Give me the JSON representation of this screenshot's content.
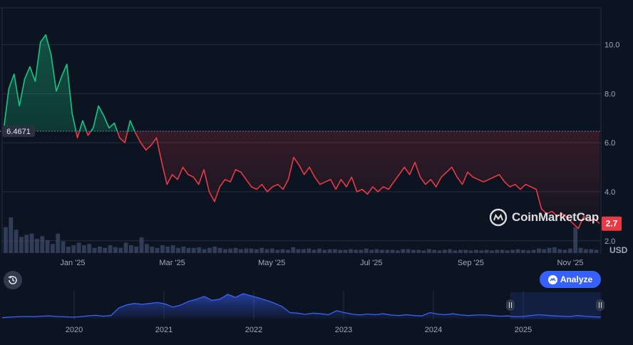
{
  "brand": {
    "name": "CoinMarketCap"
  },
  "controls": {
    "analyze_label": "Analyze"
  },
  "colors": {
    "background": "#0d1421",
    "grid": "#262d3d",
    "up": "#16c784",
    "down": "#ea3943",
    "volume": "#3b4766",
    "navigator_line": "#3861fb",
    "button": "#3861fb",
    "axis_text": "#a1a7bb",
    "reference_label_bg": "#2a3040"
  },
  "chart_data": [
    {
      "type": "line",
      "x_ticks": [
        "Jan '25",
        "Mar '25",
        "May '25",
        "Jul '25",
        "Sep '25",
        "Nov '25"
      ],
      "y_ticks": [
        "2.0",
        "4.0",
        "6.0",
        "8.0",
        "10.0"
      ],
      "ylim": [
        1.5,
        11.5
      ],
      "unit_label": "USD",
      "reference_value": 6.4671,
      "reference_label": "6.4671",
      "last_value": 2.7,
      "last_label": "2.7",
      "grid": "horizontal",
      "series": [
        {
          "values": [
            6.5,
            8.2,
            8.8,
            7.5,
            8.6,
            9.1,
            8.5,
            10.1,
            10.4,
            9.6,
            8.1,
            8.7,
            9.2,
            7.2,
            6.2,
            6.9,
            6.3,
            6.6,
            7.5,
            7.1,
            6.6,
            6.8,
            6.2,
            6.0,
            6.9,
            6.4,
            6.0,
            5.7,
            5.9,
            6.2,
            5.2,
            4.3,
            4.7,
            4.5,
            5.0,
            4.7,
            4.6,
            4.3,
            4.9,
            4.0,
            3.6,
            4.2,
            4.5,
            4.4,
            4.9,
            4.8,
            4.5,
            4.2,
            4.1,
            4.3,
            4.0,
            4.2,
            4.3,
            4.1,
            4.5,
            5.4,
            5.1,
            4.7,
            5.0,
            4.6,
            4.3,
            4.4,
            4.5,
            4.1,
            4.5,
            4.2,
            4.6,
            4.0,
            4.1,
            3.9,
            4.2,
            4.0,
            4.2,
            4.1,
            4.4,
            4.7,
            5.0,
            4.7,
            5.2,
            4.6,
            4.3,
            4.5,
            4.2,
            4.6,
            4.8,
            5.0,
            4.6,
            4.3,
            4.8,
            4.6,
            4.5,
            4.4,
            4.5,
            4.6,
            4.7,
            4.4,
            4.2,
            4.3,
            4.1,
            4.3,
            4.2,
            4.1,
            3.3,
            3.1,
            3.2,
            3.0,
            3.1,
            2.9,
            2.7,
            2.5,
            3.0,
            2.8,
            2.9,
            2.7
          ]
        }
      ],
      "volume": [
        40,
        55,
        36,
        25,
        28,
        30,
        22,
        26,
        20,
        14,
        30,
        18,
        10,
        12,
        16,
        12,
        14,
        8,
        10,
        8,
        12,
        9,
        8,
        16,
        12,
        10,
        24,
        14,
        10,
        8,
        12,
        10,
        12,
        8,
        10,
        8,
        8,
        9,
        6,
        8,
        10,
        8,
        6,
        7,
        8,
        6,
        7,
        7,
        6,
        8,
        6,
        7,
        5,
        6,
        5,
        9,
        6,
        6,
        7,
        5,
        7,
        5,
        6,
        6,
        5,
        5,
        6,
        5,
        5,
        7,
        5,
        6,
        5,
        5,
        5,
        4,
        6,
        6,
        5,
        5,
        4,
        6,
        5,
        4,
        5,
        6,
        4,
        5,
        5,
        4,
        5,
        4,
        5,
        4,
        5,
        5,
        4,
        5,
        6,
        5,
        4,
        5,
        7,
        6,
        8,
        9,
        6,
        5,
        7,
        40,
        8,
        6,
        6,
        5
      ]
    },
    {
      "type": "area",
      "x_ticks": [
        "2020",
        "2021",
        "2022",
        "2023",
        "2024",
        "2025"
      ],
      "values": [
        0.3,
        0.5,
        0.6,
        0.7,
        0.6,
        0.8,
        0.9,
        0.7,
        0.6,
        0.5,
        0.6,
        0.9,
        1.1,
        0.8,
        1.0,
        3.5,
        4.5,
        5.0,
        4.7,
        5.0,
        5.3,
        4.8,
        3.8,
        4.5,
        5.7,
        6.4,
        7.3,
        6.0,
        6.4,
        8.0,
        7.0,
        8.2,
        7.5,
        6.8,
        6.0,
        5.1,
        4.0,
        2.0,
        1.8,
        1.4,
        1.8,
        1.6,
        1.3,
        2.6,
        2.0,
        1.5,
        1.2,
        1.5,
        1.3,
        1.6,
        1.2,
        1.0,
        1.3,
        1.0,
        0.9,
        2.0,
        1.5,
        1.3,
        1.6,
        1.2,
        1.0,
        1.2,
        1.2,
        1.0,
        0.8,
        0.9,
        0.6,
        0.7,
        1.0,
        1.3,
        1.1,
        0.9,
        0.8,
        0.7,
        1.0,
        0.8,
        0.6,
        0.5
      ]
    }
  ]
}
